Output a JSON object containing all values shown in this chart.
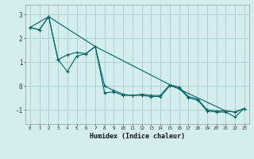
{
  "xlabel": "Humidex (Indice chaleur)",
  "bg_color": "#d4eeee",
  "grid_color": "#aacccc",
  "line_color": "#006666",
  "xlim": [
    -0.5,
    23.5
  ],
  "ylim": [
    -1.6,
    3.4
  ],
  "xticks": [
    0,
    1,
    2,
    3,
    4,
    5,
    6,
    7,
    8,
    9,
    10,
    11,
    12,
    13,
    14,
    15,
    16,
    17,
    18,
    19,
    20,
    21,
    22,
    23
  ],
  "yticks": [
    -1,
    0,
    1,
    2,
    3
  ],
  "series": [
    {
      "x": [
        0,
        1,
        2,
        3,
        4,
        5,
        6,
        7,
        8,
        9,
        10,
        11,
        12,
        13,
        14,
        15,
        16,
        17,
        18,
        19,
        20,
        21,
        22,
        23
      ],
      "y": [
        2.45,
        2.35,
        2.9,
        1.1,
        1.3,
        1.4,
        1.35,
        1.65,
        0.0,
        -0.2,
        -0.35,
        -0.4,
        -0.35,
        -0.4,
        -0.4,
        0.05,
        -0.05,
        -0.45,
        -0.55,
        -1.0,
        -1.05,
        -1.05,
        -1.1,
        -0.95
      ]
    },
    {
      "x": [
        0,
        1,
        2,
        3,
        4,
        5,
        6,
        7,
        8,
        9,
        10,
        11,
        12,
        13,
        14,
        15,
        16,
        17,
        18,
        19,
        20,
        21,
        22,
        23
      ],
      "y": [
        2.45,
        2.35,
        2.9,
        1.1,
        0.6,
        1.25,
        1.35,
        1.65,
        -0.3,
        -0.25,
        -0.4,
        -0.4,
        -0.4,
        -0.45,
        -0.45,
        0.0,
        -0.1,
        -0.5,
        -0.6,
        -1.05,
        -1.1,
        -1.1,
        -1.3,
        -0.95
      ]
    },
    {
      "x": [
        0,
        2,
        7,
        15,
        21,
        22,
        23
      ],
      "y": [
        2.45,
        2.9,
        1.65,
        0.05,
        -1.05,
        -1.1,
        -0.95
      ]
    }
  ]
}
